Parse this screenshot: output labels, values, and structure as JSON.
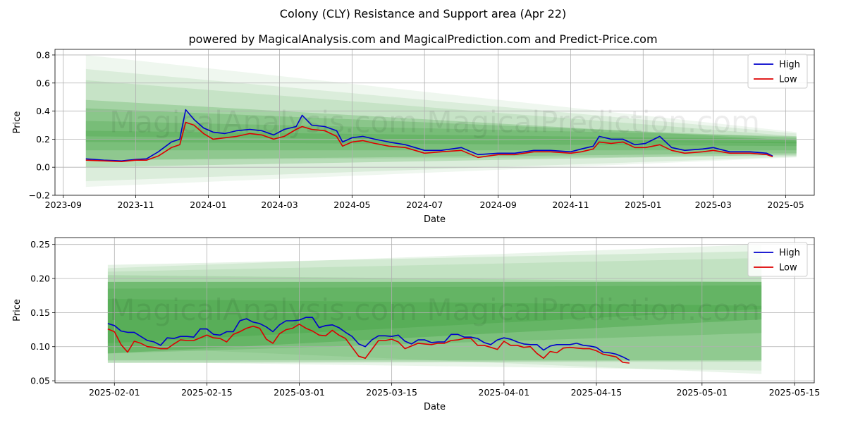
{
  "figure": {
    "title": "Colony (CLY) Resistance and Support area (Apr 22)",
    "subtitle": "powered by MagicalAnalysis.com and MagicalPrediction.com and Predict-Price.com",
    "watermark": "MagicalAnalysis.com    MagicalPrediction.com"
  },
  "chart_data": [
    {
      "type": "line",
      "xlabel": "Date",
      "ylabel": "Price",
      "xlim": [
        "2023-08-25",
        "2025-05-25"
      ],
      "ylim": [
        -0.2,
        0.84
      ],
      "x_ticks": [
        "2023-09-01",
        "2023-11-01",
        "2024-01-01",
        "2024-03-01",
        "2024-05-01",
        "2024-07-01",
        "2024-09-01",
        "2024-11-01",
        "2025-01-01",
        "2025-03-01",
        "2025-05-01"
      ],
      "x_tick_labels": [
        "2023-09",
        "2023-11",
        "2024-01",
        "2024-03",
        "2024-05",
        "2024-07",
        "2024-09",
        "2024-11",
        "2025-01",
        "2025-03",
        "2025-05"
      ],
      "y_ticks": [
        -0.2,
        0.0,
        0.2,
        0.4,
        0.6,
        0.8
      ],
      "y_tick_labels": [
        "−0.2",
        "0.0",
        "0.2",
        "0.4",
        "0.6",
        "0.8"
      ],
      "grid": true,
      "legend": "top-right",
      "series": [
        {
          "name": "High",
          "color": "#0000cc",
          "x": [
            "2023-09-20",
            "2023-10-05",
            "2023-10-20",
            "2023-11-01",
            "2023-11-10",
            "2023-11-20",
            "2023-12-01",
            "2023-12-08",
            "2023-12-13",
            "2023-12-20",
            "2023-12-28",
            "2024-01-05",
            "2024-01-15",
            "2024-01-25",
            "2024-02-05",
            "2024-02-15",
            "2024-02-25",
            "2024-03-05",
            "2024-03-15",
            "2024-03-20",
            "2024-03-28",
            "2024-04-08",
            "2024-04-18",
            "2024-04-23",
            "2024-05-01",
            "2024-05-10",
            "2024-05-20",
            "2024-06-01",
            "2024-06-15",
            "2024-07-01",
            "2024-07-15",
            "2024-08-01",
            "2024-08-15",
            "2024-09-01",
            "2024-09-15",
            "2024-10-01",
            "2024-10-15",
            "2024-11-01",
            "2024-11-10",
            "2024-11-20",
            "2024-11-25",
            "2024-12-05",
            "2024-12-15",
            "2024-12-25",
            "2025-01-03",
            "2025-01-15",
            "2025-01-25",
            "2025-02-05",
            "2025-02-20",
            "2025-03-01",
            "2025-03-15",
            "2025-04-01",
            "2025-04-15",
            "2025-04-20"
          ],
          "values": [
            0.06,
            0.05,
            0.045,
            0.055,
            0.06,
            0.11,
            0.18,
            0.2,
            0.41,
            0.34,
            0.28,
            0.25,
            0.24,
            0.26,
            0.27,
            0.26,
            0.23,
            0.27,
            0.29,
            0.37,
            0.3,
            0.29,
            0.26,
            0.18,
            0.21,
            0.22,
            0.2,
            0.18,
            0.16,
            0.12,
            0.12,
            0.14,
            0.09,
            0.1,
            0.1,
            0.12,
            0.12,
            0.11,
            0.13,
            0.15,
            0.22,
            0.2,
            0.2,
            0.16,
            0.17,
            0.22,
            0.14,
            0.12,
            0.13,
            0.14,
            0.11,
            0.11,
            0.1,
            0.08
          ]
        },
        {
          "name": "Low",
          "color": "#dd0000",
          "x": [
            "2023-09-20",
            "2023-10-05",
            "2023-10-20",
            "2023-11-01",
            "2023-11-10",
            "2023-11-20",
            "2023-12-01",
            "2023-12-08",
            "2023-12-13",
            "2023-12-20",
            "2023-12-28",
            "2024-01-05",
            "2024-01-15",
            "2024-01-25",
            "2024-02-05",
            "2024-02-15",
            "2024-02-25",
            "2024-03-05",
            "2024-03-15",
            "2024-03-20",
            "2024-03-28",
            "2024-04-08",
            "2024-04-18",
            "2024-04-23",
            "2024-05-01",
            "2024-05-10",
            "2024-05-20",
            "2024-06-01",
            "2024-06-15",
            "2024-07-01",
            "2024-07-15",
            "2024-08-01",
            "2024-08-15",
            "2024-09-01",
            "2024-09-15",
            "2024-10-01",
            "2024-10-15",
            "2024-11-01",
            "2024-11-10",
            "2024-11-20",
            "2024-11-25",
            "2024-12-05",
            "2024-12-15",
            "2024-12-25",
            "2025-01-03",
            "2025-01-15",
            "2025-01-25",
            "2025-02-05",
            "2025-02-20",
            "2025-03-01",
            "2025-03-15",
            "2025-04-01",
            "2025-04-15",
            "2025-04-20"
          ],
          "values": [
            0.05,
            0.045,
            0.04,
            0.05,
            0.05,
            0.08,
            0.14,
            0.16,
            0.32,
            0.3,
            0.24,
            0.2,
            0.21,
            0.22,
            0.24,
            0.23,
            0.2,
            0.22,
            0.27,
            0.29,
            0.27,
            0.26,
            0.22,
            0.15,
            0.18,
            0.19,
            0.17,
            0.15,
            0.14,
            0.1,
            0.11,
            0.12,
            0.07,
            0.09,
            0.09,
            0.11,
            0.11,
            0.1,
            0.11,
            0.13,
            0.18,
            0.17,
            0.18,
            0.14,
            0.14,
            0.16,
            0.12,
            0.1,
            0.11,
            0.12,
            0.1,
            0.1,
            0.09,
            0.075
          ]
        }
      ],
      "bands": {
        "color": "#2e9a2e",
        "x_start": "2023-09-20",
        "x_end": "2025-05-10",
        "items": [
          {
            "lower": [
              0.22,
              0.17
            ],
            "upper": [
              0.48,
              0.19
            ],
            "opacity": 0.22
          },
          {
            "lower": [
              0.18,
              0.15
            ],
            "upper": [
              0.42,
              0.21
            ],
            "opacity": 0.22
          },
          {
            "lower": [
              0.12,
              0.12
            ],
            "upper": [
              0.33,
              0.22
            ],
            "opacity": 0.2
          },
          {
            "lower": [
              0.05,
              0.1
            ],
            "upper": [
              0.26,
              0.2
            ],
            "opacity": 0.2
          },
          {
            "lower": [
              0.0,
              0.09
            ],
            "upper": [
              0.2,
              0.18
            ],
            "opacity": 0.2
          },
          {
            "lower": [
              0.05,
              0.08
            ],
            "upper": [
              0.62,
              0.22
            ],
            "opacity": 0.12
          },
          {
            "lower": [
              -0.1,
              0.075
            ],
            "upper": [
              0.7,
              0.24
            ],
            "opacity": 0.1
          },
          {
            "lower": [
              -0.14,
              0.07
            ],
            "upper": [
              0.8,
              0.25
            ],
            "opacity": 0.08
          }
        ]
      }
    },
    {
      "type": "line",
      "xlabel": "Date",
      "ylabel": "Price",
      "xlim": [
        "2025-01-23",
        "2025-05-18"
      ],
      "ylim": [
        0.047,
        0.26
      ],
      "x_ticks": [
        "2025-02-01",
        "2025-02-15",
        "2025-03-01",
        "2025-03-15",
        "2025-04-01",
        "2025-04-15",
        "2025-05-01",
        "2025-05-15"
      ],
      "x_tick_labels": [
        "2025-02-01",
        "2025-02-15",
        "2025-03-01",
        "2025-03-15",
        "2025-04-01",
        "2025-04-15",
        "2025-05-01",
        "2025-05-15"
      ],
      "y_ticks": [
        0.05,
        0.1,
        0.15,
        0.2,
        0.25
      ],
      "y_tick_labels": [
        "0.05",
        "0.10",
        "0.15",
        "0.20",
        "0.25"
      ],
      "grid": true,
      "legend": "top-right",
      "series": [
        {
          "name": "High",
          "color": "#0000cc",
          "x": [
            "2025-01-31",
            "2025-02-01",
            "2025-02-02",
            "2025-02-03",
            "2025-02-04",
            "2025-02-05",
            "2025-02-06",
            "2025-02-07",
            "2025-02-08",
            "2025-02-09",
            "2025-02-10",
            "2025-02-11",
            "2025-02-12",
            "2025-02-13",
            "2025-02-14",
            "2025-02-15",
            "2025-02-16",
            "2025-02-17",
            "2025-02-18",
            "2025-02-19",
            "2025-02-20",
            "2025-02-21",
            "2025-02-22",
            "2025-02-23",
            "2025-02-24",
            "2025-02-25",
            "2025-02-26",
            "2025-02-27",
            "2025-02-28",
            "2025-03-01",
            "2025-03-02",
            "2025-03-03",
            "2025-03-04",
            "2025-03-05",
            "2025-03-06",
            "2025-03-07",
            "2025-03-08",
            "2025-03-09",
            "2025-03-10",
            "2025-03-11",
            "2025-03-12",
            "2025-03-13",
            "2025-03-14",
            "2025-03-15",
            "2025-03-16",
            "2025-03-17",
            "2025-03-18",
            "2025-03-19",
            "2025-03-20",
            "2025-03-21",
            "2025-03-22",
            "2025-03-23",
            "2025-03-24",
            "2025-03-25",
            "2025-03-26",
            "2025-03-27",
            "2025-03-28",
            "2025-03-29",
            "2025-03-30",
            "2025-03-31",
            "2025-04-01",
            "2025-04-02",
            "2025-04-03",
            "2025-04-04",
            "2025-04-05",
            "2025-04-06",
            "2025-04-07",
            "2025-04-08",
            "2025-04-09",
            "2025-04-10",
            "2025-04-11",
            "2025-04-12",
            "2025-04-13",
            "2025-04-14",
            "2025-04-15",
            "2025-04-16",
            "2025-04-17",
            "2025-04-18",
            "2025-04-19",
            "2025-04-20"
          ],
          "values": [
            0.134,
            0.131,
            0.123,
            0.121,
            0.121,
            0.115,
            0.109,
            0.107,
            0.102,
            0.113,
            0.112,
            0.115,
            0.115,
            0.114,
            0.126,
            0.126,
            0.118,
            0.117,
            0.122,
            0.122,
            0.138,
            0.141,
            0.136,
            0.134,
            0.129,
            0.122,
            0.132,
            0.138,
            0.138,
            0.139,
            0.143,
            0.143,
            0.128,
            0.131,
            0.132,
            0.128,
            0.121,
            0.115,
            0.104,
            0.1,
            0.11,
            0.116,
            0.116,
            0.115,
            0.117,
            0.108,
            0.104,
            0.11,
            0.11,
            0.106,
            0.107,
            0.107,
            0.118,
            0.118,
            0.114,
            0.114,
            0.112,
            0.106,
            0.103,
            0.11,
            0.113,
            0.111,
            0.107,
            0.104,
            0.103,
            0.103,
            0.095,
            0.101,
            0.103,
            0.103,
            0.103,
            0.105,
            0.102,
            0.101,
            0.099,
            0.092,
            0.091,
            0.089,
            0.085,
            0.08
          ]
        },
        {
          "name": "Low",
          "color": "#dd0000",
          "x": [
            "2025-01-31",
            "2025-02-01",
            "2025-02-02",
            "2025-02-03",
            "2025-02-04",
            "2025-02-05",
            "2025-02-06",
            "2025-02-07",
            "2025-02-08",
            "2025-02-09",
            "2025-02-10",
            "2025-02-11",
            "2025-02-12",
            "2025-02-13",
            "2025-02-14",
            "2025-02-15",
            "2025-02-16",
            "2025-02-17",
            "2025-02-18",
            "2025-02-19",
            "2025-02-20",
            "2025-02-21",
            "2025-02-22",
            "2025-02-23",
            "2025-02-24",
            "2025-02-25",
            "2025-02-26",
            "2025-02-27",
            "2025-02-28",
            "2025-03-01",
            "2025-03-02",
            "2025-03-03",
            "2025-03-04",
            "2025-03-05",
            "2025-03-06",
            "2025-03-07",
            "2025-03-08",
            "2025-03-09",
            "2025-03-10",
            "2025-03-11",
            "2025-03-12",
            "2025-03-13",
            "2025-03-14",
            "2025-03-15",
            "2025-03-16",
            "2025-03-17",
            "2025-03-18",
            "2025-03-19",
            "2025-03-20",
            "2025-03-21",
            "2025-03-22",
            "2025-03-23",
            "2025-03-24",
            "2025-03-25",
            "2025-03-26",
            "2025-03-27",
            "2025-03-28",
            "2025-03-29",
            "2025-03-30",
            "2025-03-31",
            "2025-04-01",
            "2025-04-02",
            "2025-04-03",
            "2025-04-04",
            "2025-04-05",
            "2025-04-06",
            "2025-04-07",
            "2025-04-08",
            "2025-04-09",
            "2025-04-10",
            "2025-04-11",
            "2025-04-12",
            "2025-04-13",
            "2025-04-14",
            "2025-04-15",
            "2025-04-16",
            "2025-04-17",
            "2025-04-18",
            "2025-04-19",
            "2025-04-20"
          ],
          "values": [
            0.126,
            0.122,
            0.103,
            0.092,
            0.108,
            0.105,
            0.1,
            0.099,
            0.097,
            0.097,
            0.104,
            0.11,
            0.109,
            0.109,
            0.113,
            0.117,
            0.113,
            0.112,
            0.107,
            0.118,
            0.122,
            0.127,
            0.13,
            0.127,
            0.111,
            0.105,
            0.119,
            0.125,
            0.127,
            0.133,
            0.127,
            0.123,
            0.117,
            0.116,
            0.124,
            0.117,
            0.112,
            0.099,
            0.086,
            0.083,
            0.096,
            0.109,
            0.109,
            0.111,
            0.107,
            0.097,
            0.101,
            0.105,
            0.104,
            0.103,
            0.105,
            0.105,
            0.109,
            0.11,
            0.112,
            0.112,
            0.102,
            0.102,
            0.099,
            0.096,
            0.108,
            0.102,
            0.102,
            0.099,
            0.1,
            0.09,
            0.083,
            0.093,
            0.091,
            0.098,
            0.099,
            0.098,
            0.097,
            0.097,
            0.094,
            0.089,
            0.087,
            0.085,
            0.077,
            0.076
          ]
        }
      ],
      "bands": {
        "color": "#2e9a2e",
        "x_start": "2025-01-31",
        "x_end": "2025-05-10",
        "items": [
          {
            "lower": [
              0.09,
              0.14
            ],
            "upper": [
              0.195,
              0.195
            ],
            "opacity": 0.3
          },
          {
            "lower": [
              0.105,
              0.155
            ],
            "upper": [
              0.185,
              0.19
            ],
            "opacity": 0.22
          },
          {
            "lower": [
              0.08,
              0.08
            ],
            "upper": [
              0.195,
              0.195
            ],
            "opacity": 0.22
          },
          {
            "lower": [
              0.09,
              0.12
            ],
            "upper": [
              0.17,
              0.16
            ],
            "opacity": 0.2
          },
          {
            "lower": [
              0.076,
              0.078
            ],
            "upper": [
              0.205,
              0.195
            ],
            "opacity": 0.14
          },
          {
            "lower": [
              0.076,
              0.08
            ],
            "upper": [
              0.22,
              0.24
            ],
            "opacity": 0.12
          },
          {
            "lower": [
              0.1,
              0.06
            ],
            "upper": [
              0.215,
              0.25
            ],
            "opacity": 0.1
          },
          {
            "lower": [
              0.078,
              0.065
            ],
            "upper": [
              0.21,
              0.23
            ],
            "opacity": 0.1
          }
        ]
      }
    }
  ]
}
